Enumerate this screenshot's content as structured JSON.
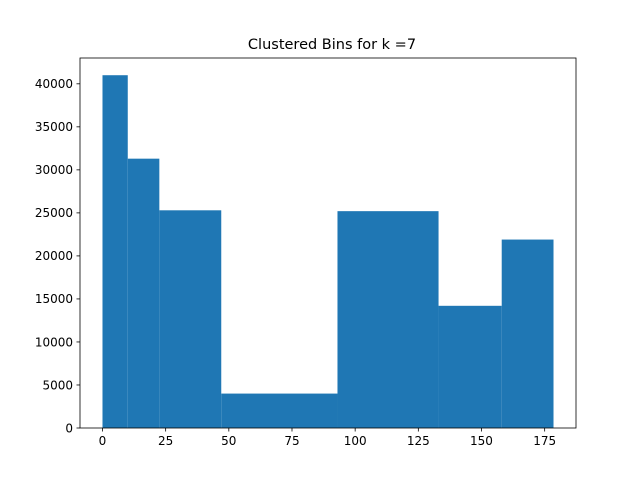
{
  "chart_data": {
    "type": "bar",
    "title": "Clustered Bins for k =7",
    "xlabel": "",
    "ylabel": "",
    "bins": [
      {
        "x0": 0,
        "x1": 10,
        "value": 41000
      },
      {
        "x0": 10,
        "x1": 22.5,
        "value": 31300
      },
      {
        "x0": 22.5,
        "x1": 47,
        "value": 25300
      },
      {
        "x0": 47,
        "x1": 93,
        "value": 4000
      },
      {
        "x0": 93,
        "x1": 133,
        "value": 25200
      },
      {
        "x0": 133,
        "x1": 158,
        "value": 14200
      },
      {
        "x0": 158,
        "x1": 178.5,
        "value": 21900
      }
    ],
    "xlim": [
      -8.9,
      187.4
    ],
    "ylim": [
      0,
      43000
    ],
    "xticks": [
      0,
      25,
      50,
      75,
      100,
      125,
      150,
      175
    ],
    "xtick_labels": [
      "0",
      "25",
      "50",
      "75",
      "100",
      "125",
      "150",
      "175"
    ],
    "yticks": [
      0,
      5000,
      10000,
      15000,
      20000,
      25000,
      30000,
      35000,
      40000
    ],
    "ytick_labels": [
      "0",
      "5000",
      "10000",
      "15000",
      "20000",
      "25000",
      "30000",
      "35000",
      "40000"
    ],
    "bar_color": "#1f77b4",
    "grid": false,
    "legend": "none"
  }
}
